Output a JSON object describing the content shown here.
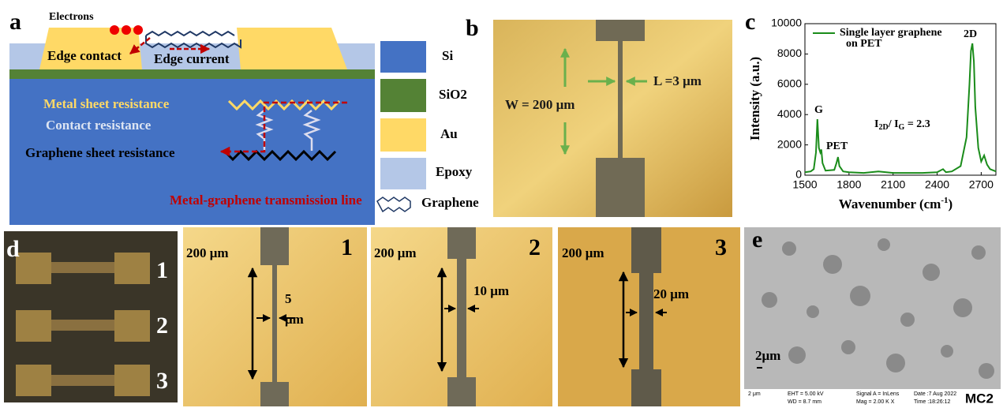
{
  "panel_a": {
    "label": "a",
    "electrons": "Electrons",
    "edge_contact": "Edge contact",
    "edge_current": "Edge current",
    "metal_sheet": "Metal sheet resistance",
    "contact": "Contact resistance",
    "graphene_sheet": "Graphene sheet resistance",
    "transmission_line": "Metal-graphene transmission line",
    "legend": [
      "Si",
      "SiO2",
      "Au",
      "Epoxy",
      "Graphene"
    ]
  },
  "panel_b": {
    "label": "b",
    "width": "W = 200 μm",
    "length": "L =3 μm"
  },
  "chart_data": {
    "type": "line",
    "label": "c",
    "x_label": [
      "Wavenumber (cm",
      "-1",
      ")"
    ],
    "y_label": "Intensity (a.u.)",
    "annotations": {
      "legend_line2": "on PET",
      "g": "G",
      "pet": "PET",
      "2d": "2D",
      "ratio": [
        "I",
        "2D",
        "/ I",
        "G",
        " = 2.3"
      ]
    },
    "xlim": [
      1500,
      2800
    ],
    "xticks": [
      1500,
      1800,
      2100,
      2400,
      2700
    ],
    "ylim": [
      0,
      10000
    ],
    "yticks": [
      0,
      2000,
      4000,
      6000,
      8000,
      10000
    ],
    "x": [
      1500,
      1540,
      1560,
      1575,
      1585,
      1595,
      1605,
      1612,
      1620,
      1640,
      1700,
      1715,
      1725,
      1735,
      1760,
      1800,
      1900,
      2000,
      2100,
      2200,
      2300,
      2400,
      2440,
      2460,
      2500,
      2560,
      2600,
      2620,
      2630,
      2640,
      2650,
      2660,
      2680,
      2700,
      2720,
      2740,
      2760,
      2800
    ],
    "series": [
      {
        "name": "Single layer graphene",
        "color": "#1a8c1a",
        "values": [
          200,
          250,
          400,
          1500,
          3700,
          1800,
          1500,
          1700,
          800,
          300,
          350,
          800,
          1200,
          600,
          250,
          200,
          150,
          250,
          150,
          150,
          150,
          200,
          400,
          200,
          250,
          600,
          2500,
          6000,
          8200,
          8700,
          7500,
          4500,
          1800,
          900,
          1300,
          700,
          400,
          250
        ]
      }
    ]
  },
  "panel_d": {
    "label": "d",
    "device_numbers": [
      "1",
      "2",
      "3"
    ],
    "images": [
      {
        "scale": "200 μm",
        "number": "1",
        "gap": [
          "5",
          "μm"
        ]
      },
      {
        "scale": "200 μm",
        "number": "2",
        "gap": [
          "10 μm"
        ]
      },
      {
        "scale": "200 μm",
        "number": "3",
        "gap": [
          "20 μm"
        ]
      }
    ]
  },
  "panel_e": {
    "label": "e",
    "scale": "2μm",
    "footer": [
      "2 μm",
      "EHT = 5.00 kV",
      "WD = 8.7 mm",
      "Signal A = InLens",
      "Mag = 2.00 K X",
      "Date :7 Aug 2022",
      "Time :18:26:12",
      "MC2"
    ]
  }
}
